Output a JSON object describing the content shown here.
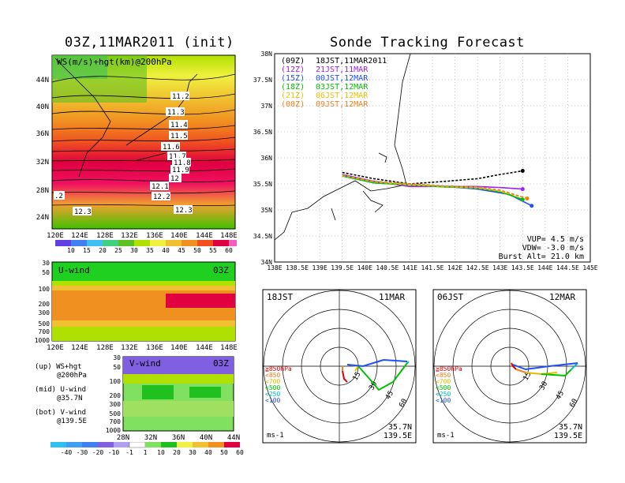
{
  "header": {
    "left_title": "03Z,11MAR2011 (init)",
    "right_title": "Sonde Tracking Forecast"
  },
  "ws_panel": {
    "label": "WS(m/s)+hgt(km)@200hPa",
    "lat_ticks": [
      "44N",
      "40N",
      "36N",
      "32N",
      "28N",
      "24N"
    ],
    "lon_ticks": [
      "120E",
      "124E",
      "128E",
      "132E",
      "136E",
      "140E",
      "144E",
      "148E"
    ],
    "contour_labels": [
      "11.2",
      "11.3",
      "11.4",
      "11.5",
      "11.6",
      "11.7",
      "11.8",
      "11.9",
      "12",
      "12.1",
      "12.2",
      "12.3",
      "12.3",
      ".2"
    ],
    "colorbar_ticks": [
      "10",
      "15",
      "20",
      "25",
      "30",
      "35",
      "40",
      "45",
      "50",
      "55",
      "60"
    ]
  },
  "uwind_panel": {
    "label": "U-wind",
    "time": "03Z",
    "p_ticks": [
      "30",
      "50",
      "100",
      "200",
      "300",
      "500",
      "700",
      "1000"
    ],
    "lon_ticks": [
      "120E",
      "124E",
      "128E",
      "132E",
      "136E",
      "140E",
      "144E",
      "148E"
    ]
  },
  "vwind_panel": {
    "label": "V-wind",
    "time": "03Z",
    "p_ticks": [
      "30",
      "50",
      "100",
      "200",
      "300",
      "500",
      "700",
      "1000"
    ],
    "lat_ticks": [
      "28N",
      "32N",
      "36N",
      "40N",
      "44N"
    ],
    "colorbar_ticks": [
      "-40",
      "-30",
      "-20",
      "-10",
      "-1",
      "1",
      "10",
      "20",
      "30",
      "40",
      "50",
      "60"
    ]
  },
  "side_legend": {
    "up": "(up) WS+hgt",
    "up2": "@200hPa",
    "mid": "(mid) U-wind",
    "mid2": "@35.7N",
    "bot": "(bot) V-wind",
    "bot2": "@139.5E"
  },
  "track_panel": {
    "legend": [
      {
        "code": "(09Z)",
        "label": "18JST,11MAR2011",
        "color": "#000000"
      },
      {
        "code": "(12Z)",
        "label": "21JST,11MAR",
        "color": "#a020f0"
      },
      {
        "code": "(15Z)",
        "label": "00JST,12MAR",
        "color": "#1e50ff"
      },
      {
        "code": "(18Z)",
        "label": "03JST,12MAR",
        "color": "#00c000"
      },
      {
        "code": "(21Z)",
        "label": "06JST,12MAR",
        "color": "#f0c000"
      },
      {
        "code": "(00Z)",
        "label": "09JST,12MAR",
        "color": "#f08020"
      }
    ],
    "lat_ticks": [
      "38N",
      "37.5N",
      "37N",
      "36.5N",
      "36N",
      "35.5N",
      "35N",
      "34.5N",
      "34N"
    ],
    "lon_ticks": [
      "138E",
      "138.5E",
      "139E",
      "139.5E",
      "140E",
      "140.5E",
      "141E",
      "141.5E",
      "142E",
      "142.5E",
      "143E",
      "143.5E",
      "144E",
      "144.5E",
      "145E"
    ],
    "stats": [
      "VUP= 4.5 m/s",
      "VDW= -3.0 m/s",
      "Burst Alt= 21.0 km"
    ]
  },
  "hodo_left": {
    "time": "18JST",
    "date": "11MAR",
    "ring_labels": [
      "15",
      "30",
      "45",
      "60"
    ],
    "levels": [
      {
        "label": "≧850hPa",
        "color": "#e00000"
      },
      {
        "label": "<850",
        "color": "#f08020"
      },
      {
        "label": "<700",
        "color": "#e0c000"
      },
      {
        "label": "<500",
        "color": "#00c000"
      },
      {
        "label": "<250",
        "color": "#00c0c0"
      },
      {
        "label": "<100",
        "color": "#1e50ff"
      }
    ],
    "unit": "ms-1",
    "lat": "35.7N",
    "lon": "139.5E"
  },
  "hodo_right": {
    "time": "06JST",
    "date": "12MAR",
    "ring_labels": [
      "15",
      "30",
      "45",
      "60"
    ],
    "unit": "ms-1",
    "lat": "35.7N",
    "lon": "139.5E"
  },
  "chart_data": {
    "type": "line",
    "title": "Sonde Tracking Forecast",
    "xlim": [
      138,
      145
    ],
    "ylim": [
      34,
      38
    ],
    "series": [
      {
        "name": "(09Z) 18JST,11MAR2011",
        "color": "#000000",
        "x": [
          139.5,
          140.2,
          141.0,
          141.8,
          142.5,
          143.0,
          143.5
        ],
        "y": [
          35.72,
          35.6,
          35.5,
          35.55,
          35.6,
          35.68,
          35.75
        ]
      },
      {
        "name": "(12Z) 21JST,11MAR",
        "color": "#a020f0",
        "x": [
          139.5,
          140.2,
          141.0,
          141.8,
          142.5,
          143.0,
          143.5
        ],
        "y": [
          35.68,
          35.55,
          35.45,
          35.45,
          35.45,
          35.43,
          35.4
        ]
      },
      {
        "name": "(15Z) 00JST,12MAR",
        "color": "#1e50ff",
        "x": [
          139.5,
          140.2,
          141.0,
          141.8,
          142.5,
          143.2,
          143.7
        ],
        "y": [
          35.66,
          35.52,
          35.48,
          35.45,
          35.4,
          35.3,
          35.08
        ]
      },
      {
        "name": "(18Z) 03JST,12MAR",
        "color": "#00c000",
        "x": [
          139.5,
          140.2,
          141.0,
          141.8,
          142.5,
          143.0,
          143.5
        ],
        "y": [
          35.65,
          35.52,
          35.48,
          35.44,
          35.42,
          35.35,
          35.2
        ]
      },
      {
        "name": "(21Z) 06JST,12MAR",
        "color": "#f0c000",
        "x": [
          139.5,
          140.2,
          141.0,
          141.8,
          142.5,
          143.0,
          143.6
        ],
        "y": [
          35.66,
          35.54,
          35.48,
          35.45,
          35.42,
          35.36,
          35.22
        ]
      },
      {
        "name": "(00Z) 09JST,12MAR",
        "color": "#f08020",
        "x": [
          139.5,
          140.2,
          141.0,
          141.8,
          142.5,
          143.0,
          143.6
        ],
        "y": [
          35.67,
          35.55,
          35.5,
          35.46,
          35.44,
          35.38,
          35.22
        ]
      }
    ]
  }
}
